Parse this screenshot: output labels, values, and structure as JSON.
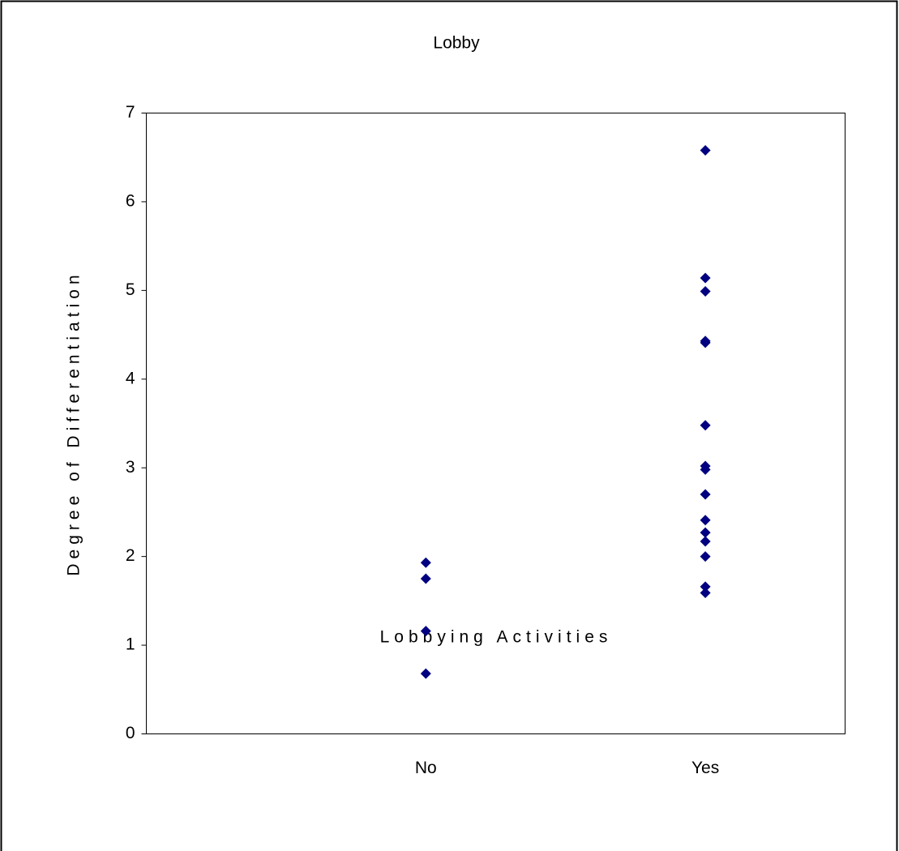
{
  "chart_data": {
    "type": "scatter",
    "title": "Lobby",
    "x_label": "Lobbying Activities",
    "y_label": "Degree of Differentiation",
    "x": [
      1,
      1,
      1,
      1,
      2,
      2,
      2,
      2,
      2,
      2,
      2,
      2,
      2,
      2,
      2,
      2,
      2,
      2,
      2
    ],
    "values": [
      1.93,
      1.75,
      1.16,
      0.68,
      6.58,
      5.14,
      4.99,
      4.43,
      4.41,
      3.48,
      3.02,
      2.98,
      2.7,
      2.41,
      2.27,
      2.17,
      2.0,
      1.66,
      1.59
    ],
    "color": "#000080",
    "xlim": [
      0,
      2.5
    ],
    "xticks": [
      {
        "value": 1,
        "label": "No"
      },
      {
        "value": 2,
        "label": "Yes"
      }
    ],
    "ylim": [
      0,
      7
    ],
    "yticks": [
      0,
      1,
      2,
      3,
      4,
      5,
      6,
      7
    ],
    "grid": false
  }
}
